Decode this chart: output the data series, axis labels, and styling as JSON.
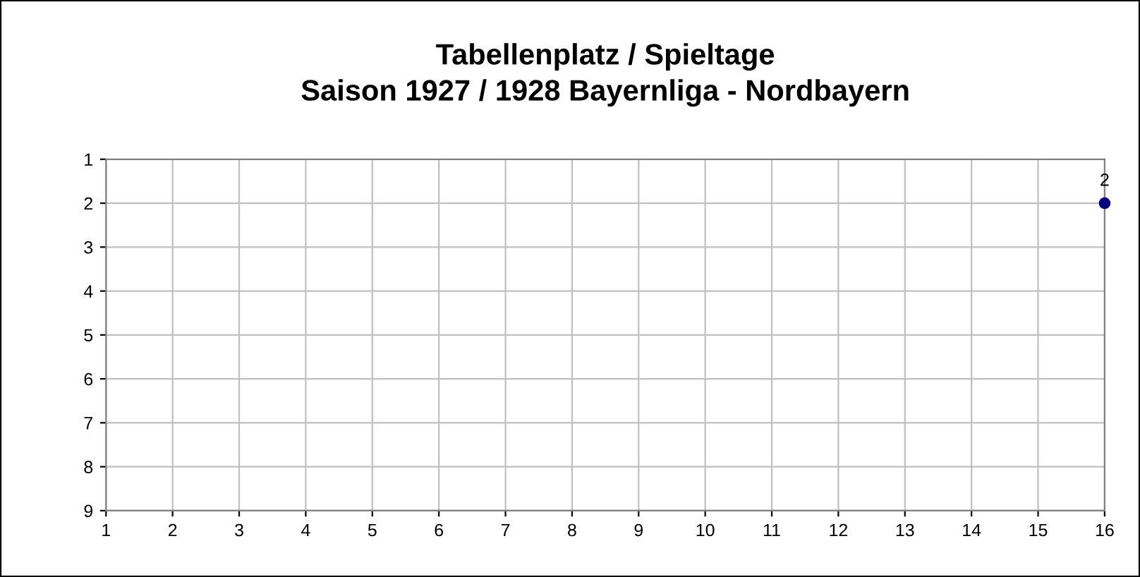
{
  "chart_data": {
    "type": "line",
    "title": "Tabellenplatz / Spieltage\nSaison 1927 / 1928 Bayernliga - Nordbayern",
    "series": [
      {
        "color": "#000080",
        "x": [
          16
        ],
        "values": [
          2
        ]
      }
    ],
    "xlim": [
      1,
      16
    ],
    "xticks": [
      1,
      2,
      3,
      4,
      5,
      6,
      7,
      8,
      9,
      10,
      11,
      12,
      13,
      14,
      15,
      16
    ],
    "ylim": [
      9,
      1
    ],
    "yticks": [
      1,
      2,
      3,
      4,
      5,
      6,
      7,
      8,
      9
    ],
    "grid": true,
    "marker": "circle",
    "data_labels": true,
    "legend": false
  }
}
